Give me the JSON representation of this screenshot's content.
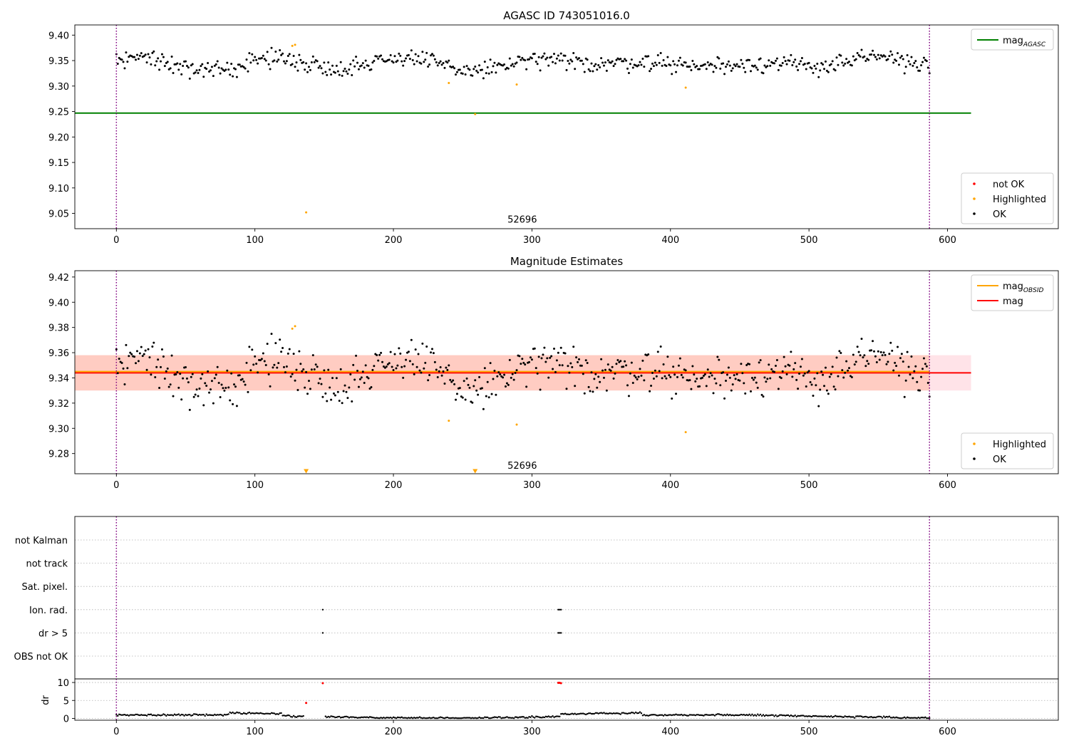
{
  "chart_data": [
    {
      "type": "scatter",
      "title": "AGASC ID 743051016.0",
      "xlim": [
        -30,
        680
      ],
      "ylim": [
        9.02,
        9.42
      ],
      "xticks": [
        0,
        100,
        200,
        300,
        400,
        500,
        600
      ],
      "yticks": [
        9.05,
        9.1,
        9.15,
        9.2,
        9.25,
        9.3,
        9.35,
        9.4
      ],
      "ytick_decimals": 2,
      "annotation": {
        "text": "52696",
        "x": 293,
        "y": 9.032
      },
      "vlines": [
        0,
        587
      ],
      "hlines": [
        {
          "name": "mag_AGASC",
          "y": 9.247,
          "x0": -30,
          "x1": 617,
          "color": "#008000"
        }
      ],
      "legend_lines": [
        {
          "label": "mag",
          "sub": "AGASC",
          "color": "#008000"
        }
      ],
      "legend_points": [
        {
          "label": "not OK",
          "color": "#ff0000"
        },
        {
          "label": "Highlighted",
          "color": "#ffa500"
        },
        {
          "label": "OK",
          "color": "#000000"
        }
      ],
      "series": [
        {
          "name": "OK",
          "color": "#000000",
          "generator": "ok",
          "x_range": [
            0,
            587
          ],
          "mean": 9.344
        },
        {
          "name": "Highlighted",
          "color": "#ffa500",
          "points": [
            [
              127,
              9.379
            ],
            [
              129,
              9.381
            ],
            [
              137,
              9.052
            ],
            [
              240,
              9.306
            ],
            [
              259,
              9.245
            ],
            [
              289,
              9.303
            ],
            [
              411,
              9.297
            ]
          ]
        }
      ]
    },
    {
      "type": "scatter",
      "title": "Magnitude Estimates",
      "xlim": [
        -30,
        680
      ],
      "ylim": [
        9.264,
        9.425
      ],
      "xticks": [
        0,
        100,
        200,
        300,
        400,
        500,
        600
      ],
      "yticks": [
        9.28,
        9.3,
        9.32,
        9.34,
        9.36,
        9.38,
        9.4,
        9.42
      ],
      "ytick_decimals": 2,
      "annotation": {
        "text": "52696",
        "x": 293,
        "y": 9.268
      },
      "vlines": [
        0,
        587
      ],
      "bands": [
        {
          "y0": 9.33,
          "y1": 9.358,
          "x0": -30,
          "x1": 617,
          "color": "#ffc0cb",
          "opacity": 0.45
        },
        {
          "y0": 9.33,
          "y1": 9.358,
          "x0": -30,
          "x1": 587,
          "color": "#ffa07a",
          "opacity": 0.35
        }
      ],
      "hlines": [
        {
          "name": "mag",
          "y": 9.344,
          "x0": -30,
          "x1": 617,
          "color": "#ff0000"
        },
        {
          "name": "mag_OBSID",
          "y": 9.345,
          "x0": -30,
          "x1": 587,
          "color": "#ffa500"
        }
      ],
      "legend_lines": [
        {
          "label": "mag",
          "sub": "OBSID",
          "color": "#ffa500"
        },
        {
          "label": "mag",
          "sub": "",
          "color": "#ff0000"
        }
      ],
      "legend_points": [
        {
          "label": "Highlighted",
          "color": "#ffa500"
        },
        {
          "label": "OK",
          "color": "#000000"
        }
      ],
      "series": [
        {
          "name": "OK",
          "color": "#000000",
          "generator": "ok",
          "x_range": [
            0,
            587
          ],
          "mean": 9.344
        },
        {
          "name": "Highlighted",
          "color": "#ffa500",
          "points": [
            [
              127,
              9.379
            ],
            [
              129,
              9.381
            ],
            [
              240,
              9.306
            ],
            [
              289,
              9.303
            ],
            [
              411,
              9.297
            ]
          ]
        },
        {
          "name": "Highlighted (off scale)",
          "color": "#ffa500",
          "marker": "triangle-down",
          "points": [
            [
              137,
              9.266
            ],
            [
              259,
              9.266
            ]
          ]
        }
      ]
    },
    {
      "type": "scatter",
      "title": "",
      "xlim": [
        -30,
        680
      ],
      "categories": [
        "not Kalman",
        "not track",
        "Sat. pixel.",
        "Ion. rad.",
        "dr > 5",
        "OBS not OK"
      ],
      "vlines": [
        0,
        587
      ],
      "flags": [
        {
          "category": "Ion. rad.",
          "x": [
            149,
            319,
            320,
            321
          ]
        },
        {
          "category": "dr > 5",
          "x": [
            149,
            319,
            320,
            321
          ]
        }
      ]
    },
    {
      "type": "scatter",
      "title": "",
      "ylabel": "dr",
      "xlim": [
        -30,
        680
      ],
      "ylim": [
        -0.5,
        11
      ],
      "xticks": [
        0,
        100,
        200,
        300,
        400,
        500,
        600
      ],
      "yticks": [
        0,
        5,
        10
      ],
      "ytick_decimals": 0,
      "vlines": [
        0,
        587
      ],
      "series": [
        {
          "name": "OK",
          "color": "#000000",
          "generator": "dr",
          "x_range": [
            0,
            587
          ]
        },
        {
          "name": "not OK",
          "color": "#ff0000",
          "points": [
            [
              137,
              4.3
            ],
            [
              149,
              9.8
            ],
            [
              319,
              9.9
            ],
            [
              320,
              9.9
            ],
            [
              321,
              9.8
            ]
          ]
        }
      ]
    }
  ]
}
